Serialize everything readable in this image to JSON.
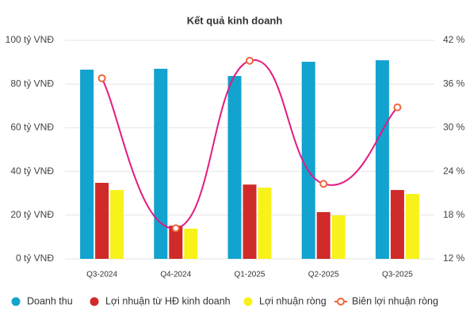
{
  "chart_data": {
    "type": "bar",
    "title": "Kết quả kinh doanh",
    "categories": [
      "Q3-2024",
      "Q4-2024",
      "Q1-2025",
      "Q2-2025",
      "Q3-2025"
    ],
    "series": [
      {
        "name": "Doanh thu",
        "type": "bar",
        "color": "#12a3cf",
        "values": [
          86.6,
          87,
          83.7,
          90.2,
          90.9
        ]
      },
      {
        "name": "Lợi nhuận từ HĐ kinh doanh",
        "type": "bar",
        "color": "#d12a2a",
        "values": [
          34.8,
          15.2,
          34,
          21.4,
          31.5
        ]
      },
      {
        "name": "Lợi nhuận ròng",
        "type": "bar",
        "color": "#f7f21a",
        "values": [
          31.5,
          13.8,
          32.6,
          19.9,
          29.7
        ]
      },
      {
        "name": "Biên lợi nhuận ròng",
        "type": "line",
        "axis": "y2",
        "color": "#e5197f",
        "marker_color": "#f0643c",
        "values": [
          36.8,
          16.2,
          39.2,
          22.3,
          32.8
        ]
      }
    ],
    "ylim": [
      0,
      100
    ],
    "yticks": [
      {
        "value": 0,
        "label": "0 tỷ VNĐ"
      },
      {
        "value": 20,
        "label": "20 tỷ VNĐ"
      },
      {
        "value": 40,
        "label": "40 tỷ VNĐ"
      },
      {
        "value": 60,
        "label": "60 tỷ VNĐ"
      },
      {
        "value": 80,
        "label": "80 tỷ VNĐ"
      },
      {
        "value": 100,
        "label": "100 tỷ VNĐ"
      }
    ],
    "y2lim": [
      12,
      42
    ],
    "y2ticks": [
      {
        "value": 12,
        "label": "12 %"
      },
      {
        "value": 18,
        "label": "18 %"
      },
      {
        "value": 24,
        "label": "24 %"
      },
      {
        "value": 30,
        "label": "30 %"
      },
      {
        "value": 36,
        "label": "36 %"
      },
      {
        "value": 42,
        "label": "42 %"
      }
    ],
    "grid": true,
    "legend": "bottom"
  }
}
